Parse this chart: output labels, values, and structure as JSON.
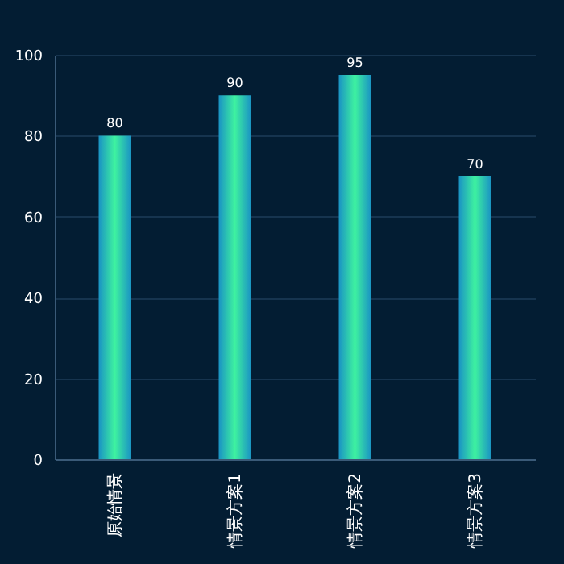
{
  "chart_data": {
    "type": "bar",
    "categories": [
      "原始情景",
      "情景方案1",
      "情景方案2",
      "情景方案3"
    ],
    "values": [
      80,
      90,
      95,
      70
    ],
    "color": "#3ef2a0",
    "ylim": [
      0,
      100
    ],
    "yticks": [
      0,
      20,
      40,
      60,
      80,
      100
    ],
    "grid": "y",
    "data_labels": true
  }
}
